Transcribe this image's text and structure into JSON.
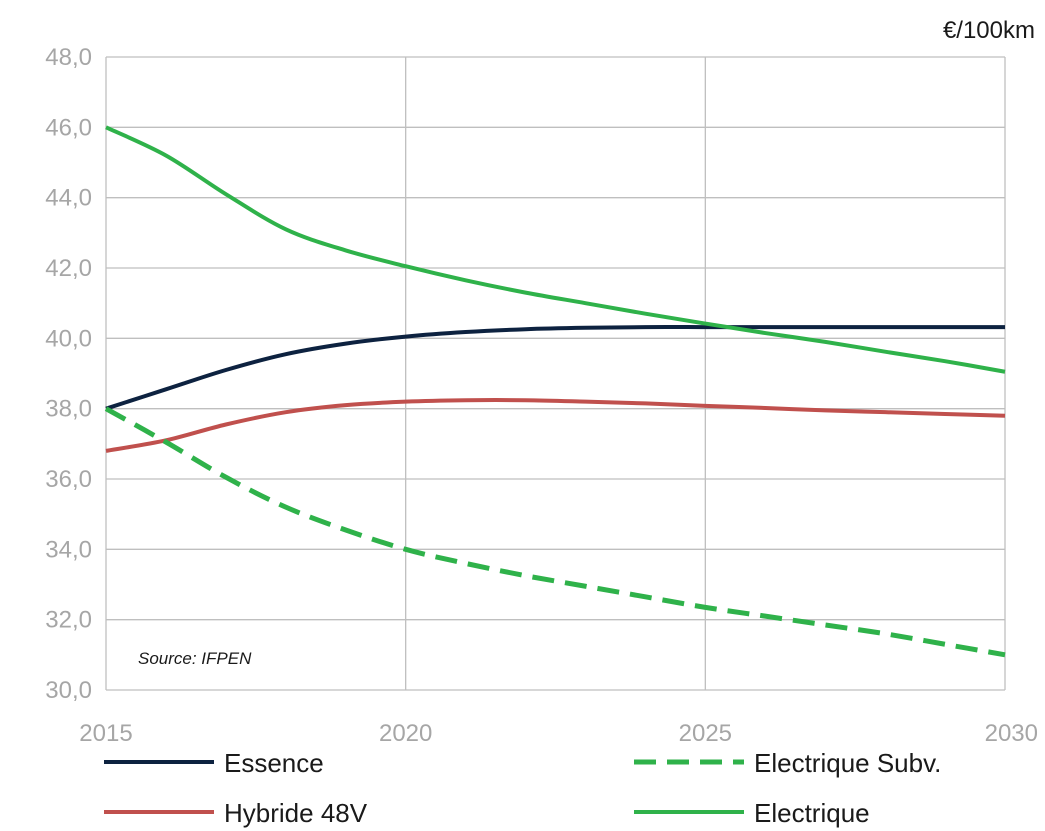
{
  "chart_data": {
    "type": "line",
    "unit_label": "€/100km",
    "annotation": "Source: IFPEN",
    "x_ticks": [
      "2015",
      "2020",
      "2025",
      "2030"
    ],
    "y_ticks": [
      "30,0",
      "32,0",
      "34,0",
      "36,0",
      "38,0",
      "40,0",
      "42,0",
      "44,0",
      "46,0",
      "48,0"
    ],
    "xlim": [
      2015,
      2030
    ],
    "ylim": [
      30,
      48
    ],
    "grid": true,
    "legend_position": "bottom",
    "series": [
      {
        "name": "Essence",
        "color": "#0d2240",
        "dash": false,
        "x": [
          2015,
          2016,
          2017,
          2018,
          2019,
          2020,
          2021,
          2022,
          2023,
          2024,
          2025,
          2026,
          2027,
          2028,
          2029,
          2030
        ],
        "y": [
          38.0,
          38.55,
          39.1,
          39.55,
          39.85,
          40.05,
          40.18,
          40.26,
          40.3,
          40.32,
          40.32,
          40.32,
          40.32,
          40.32,
          40.32,
          40.32
        ]
      },
      {
        "name": "Hybride 48V",
        "color": "#c0504d",
        "dash": false,
        "x": [
          2015,
          2016,
          2017,
          2018,
          2019,
          2020,
          2021,
          2022,
          2023,
          2024,
          2025,
          2026,
          2027,
          2028,
          2029,
          2030
        ],
        "y": [
          36.8,
          37.1,
          37.55,
          37.9,
          38.1,
          38.2,
          38.24,
          38.24,
          38.2,
          38.15,
          38.08,
          38.02,
          37.95,
          37.9,
          37.85,
          37.8
        ]
      },
      {
        "name": "Electrique Subv.",
        "color": "#2fb24a",
        "dash": true,
        "x": [
          2015,
          2016,
          2017,
          2018,
          2019,
          2020,
          2021,
          2022,
          2023,
          2024,
          2025,
          2026,
          2027,
          2028,
          2029,
          2030
        ],
        "y": [
          38.0,
          37.05,
          36.05,
          35.2,
          34.55,
          34.0,
          33.6,
          33.25,
          32.95,
          32.65,
          32.35,
          32.1,
          31.85,
          31.6,
          31.3,
          31.0
        ]
      },
      {
        "name": "Electrique",
        "color": "#2fb24a",
        "dash": false,
        "x": [
          2015,
          2016,
          2017,
          2018,
          2019,
          2020,
          2021,
          2022,
          2023,
          2024,
          2025,
          2026,
          2027,
          2028,
          2029,
          2030
        ],
        "y": [
          46.0,
          45.2,
          44.1,
          43.1,
          42.5,
          42.05,
          41.65,
          41.3,
          41.0,
          40.7,
          40.42,
          40.15,
          39.9,
          39.62,
          39.35,
          39.05
        ]
      }
    ]
  }
}
